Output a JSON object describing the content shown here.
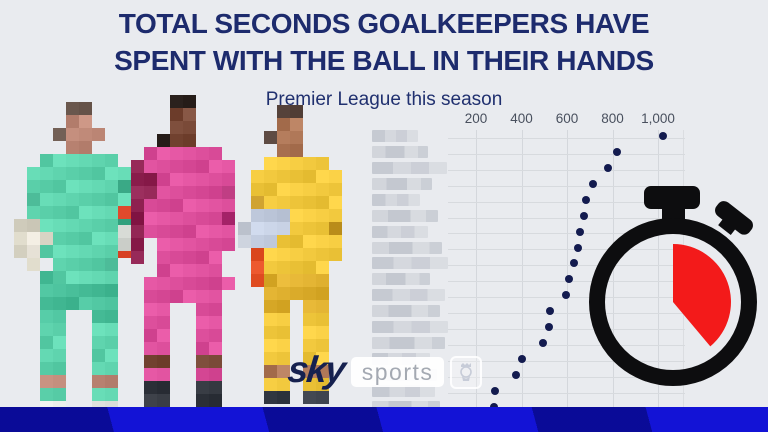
{
  "header": {
    "title_line1": "TOTAL SECONDS GOALKEEPERS HAVE",
    "title_line2": "SPENT WITH THE BALL IN THEIR HANDS",
    "subtitle": "Premier League this season"
  },
  "chart_data": {
    "type": "scatter",
    "variant": "horizontal dot plot, one row per goalkeeper, values increase left to right",
    "title": "Total seconds goalkeepers have spent with the ball in their hands",
    "subtitle": "Premier League this season",
    "x_axis": {
      "position": "top",
      "range": [
        0,
        1100
      ],
      "gridline_values": [
        200,
        400,
        600,
        800,
        1000
      ],
      "tick_labels": [
        "200",
        "400",
        "600",
        "800",
        "1,000"
      ]
    },
    "y_labels_pixelated": true,
    "legend": "none",
    "grid": "on",
    "rows": [
      {
        "label": "",
        "value": 1020,
        "blur_w": 46
      },
      {
        "label": "",
        "value": 820,
        "blur_w": 56
      },
      {
        "label": "",
        "value": 780,
        "blur_w": 75
      },
      {
        "label": "",
        "value": 715,
        "blur_w": 60
      },
      {
        "label": "",
        "value": 685,
        "blur_w": 48
      },
      {
        "label": "",
        "value": 675,
        "blur_w": 66
      },
      {
        "label": "",
        "value": 655,
        "blur_w": 56
      },
      {
        "label": "",
        "value": 650,
        "blur_w": 70
      },
      {
        "label": "",
        "value": 630,
        "blur_w": 76
      },
      {
        "label": "",
        "value": 610,
        "blur_w": 58
      },
      {
        "label": "",
        "value": 595,
        "blur_w": 73
      },
      {
        "label": "",
        "value": 525,
        "blur_w": 68
      },
      {
        "label": "",
        "value": 520,
        "blur_w": 76
      },
      {
        "label": "",
        "value": 495,
        "blur_w": 73
      },
      {
        "label": "",
        "value": 400,
        "blur_w": 58
      },
      {
        "label": "",
        "value": 375,
        "blur_w": 65
      },
      {
        "label": "",
        "value": 285,
        "blur_w": 63
      },
      {
        "label": "",
        "value": 280,
        "blur_w": 68
      }
    ]
  },
  "branding": {
    "sky_label": "sky",
    "sports_label": "sports",
    "badge": "premier-league-lion"
  },
  "colors": {
    "background": "#e9ebef",
    "title_navy": "#1d2b6d",
    "dot_navy": "#131b4f",
    "grid_line": "#d6dade",
    "axis_label": "#49505e",
    "bottom_bar_blue": "#1313d6",
    "bottom_bar_stripe": "#0c0f9f",
    "stopwatch_black": "#0d0d0f",
    "stopwatch_red": "#f31a1a",
    "sky_logo_navy": "#16214f"
  },
  "decor": {
    "goalkeepers": [
      {
        "kit": "mint",
        "K": "#5fd4ae",
        "D": "#49bf9a",
        "N": "#3fae8b",
        "S": "#c08a79",
        "H": "#6a574d",
        "G": "#d8d4c4",
        "W": "#efeadf",
        "A": "#e0492c",
        "B": "#e3e6e2"
      },
      {
        "kit": "pink",
        "K": "#dd4f9c",
        "D": "#c43a84",
        "N": "#b23076",
        "S": "#7a4a38",
        "H": "#2a211d",
        "G": "#cfd2cd",
        "W": "#e8e6ea",
        "A": "#8e2150",
        "B": "#30343c"
      },
      {
        "kit": "yellow",
        "K": "#f2c93e",
        "D": "#dfb02f",
        "N": "#c79a28",
        "S": "#b07858",
        "H": "#55423a",
        "G": "#c9cfda",
        "W": "#c3cde0",
        "A": "#e8542a",
        "B": "#3a3f49"
      }
    ]
  }
}
